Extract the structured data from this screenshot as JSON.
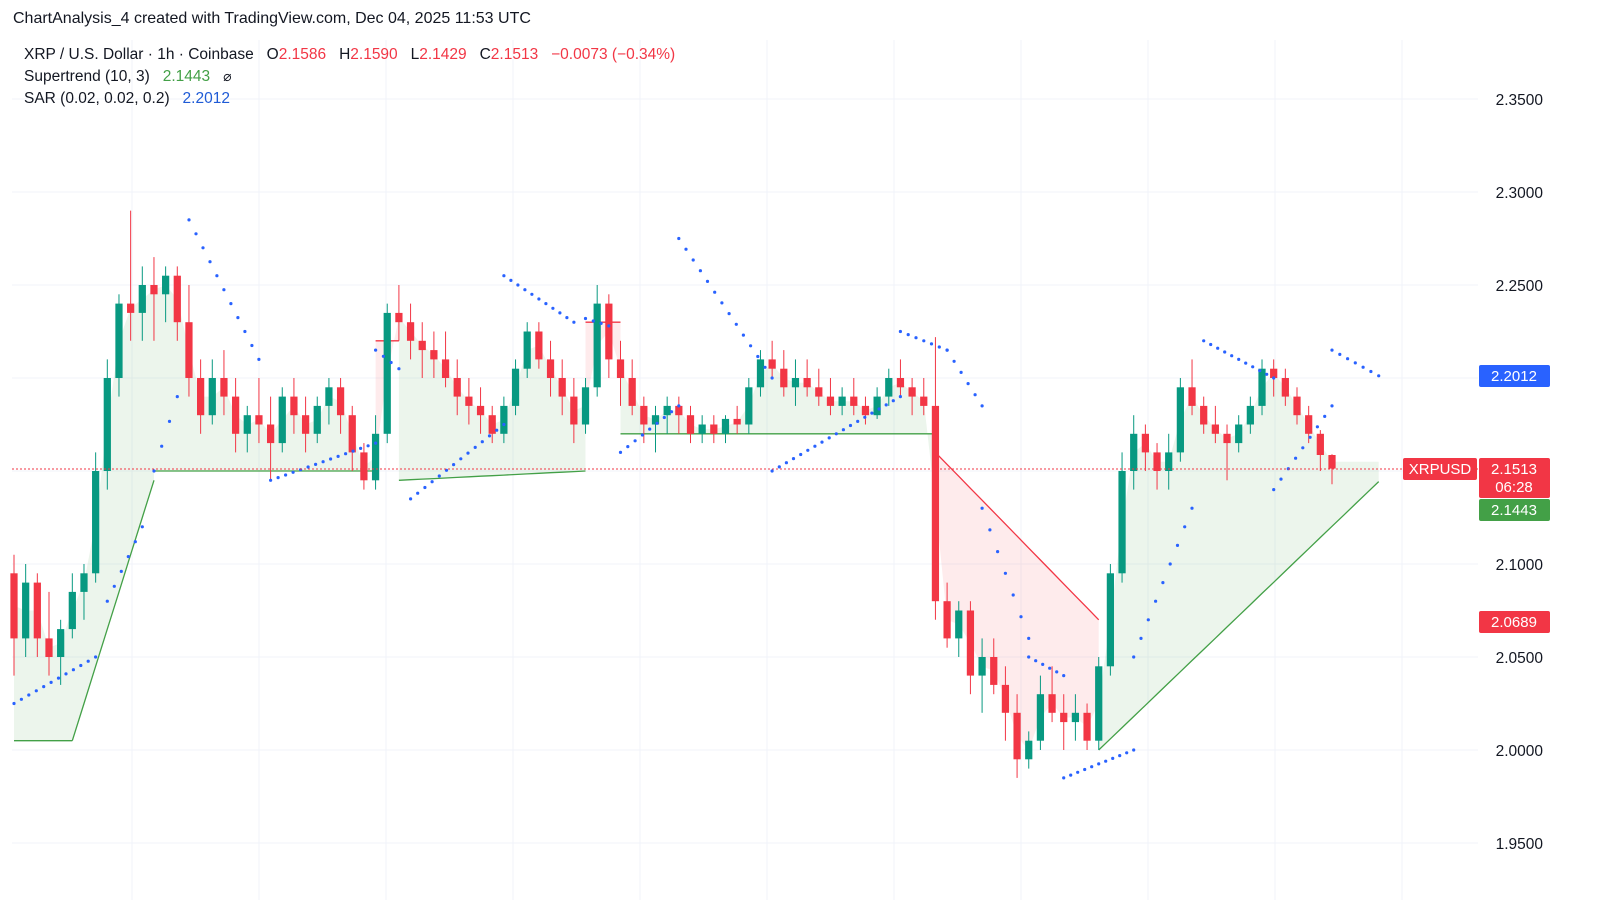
{
  "header": {
    "title": "ChartAnalysis_4 created with TradingView.com, Dec 04, 2025 11:53 UTC"
  },
  "legend": {
    "symbol": "XRP / U.S. Dollar · 1h · Coinbase",
    "o_label": "O",
    "o_value": "2.1586",
    "h_label": "H",
    "h_value": "2.1590",
    "l_label": "L",
    "l_value": "2.1429",
    "c_label": "C",
    "c_value": "2.1513",
    "change": "−0.0073 (−0.34%)",
    "supertrend_label": "Supertrend (10, 3)",
    "supertrend_value": "2.1443",
    "supertrend_icon": "eye-off-icon",
    "sar_label": "SAR (0.02, 0.02, 0.2)",
    "sar_value": "2.2012"
  },
  "tags": {
    "symbol": "XRPUSD",
    "price": "2.1513",
    "countdown": "06:28",
    "supertrend": "2.1443",
    "sar": "2.2012",
    "low_marker": "2.0689"
  },
  "colors": {
    "up": "#089981",
    "down": "#f23645",
    "sar": "#2962ff",
    "st_up": "#43a047",
    "st_down": "#f23645"
  },
  "chart_data": {
    "type": "candlestick",
    "title": "XRP / U.S. Dollar · 1h · Coinbase",
    "ylim": [
      1.925,
      2.375
    ],
    "yticks": [
      "2.3500",
      "2.3000",
      "2.2500",
      "2.2000",
      "2.1500",
      "2.1000",
      "2.0500",
      "2.0000",
      "1.9500"
    ],
    "grid": true,
    "last_price": 2.1513,
    "candles": [
      [
        2.095,
        2.105,
        2.04,
        2.06
      ],
      [
        2.06,
        2.1,
        2.05,
        2.09
      ],
      [
        2.09,
        2.095,
        2.05,
        2.06
      ],
      [
        2.06,
        2.085,
        2.04,
        2.05
      ],
      [
        2.05,
        2.07,
        2.035,
        2.065
      ],
      [
        2.065,
        2.095,
        2.06,
        2.085
      ],
      [
        2.085,
        2.1,
        2.07,
        2.095
      ],
      [
        2.095,
        2.16,
        2.09,
        2.15
      ],
      [
        2.15,
        2.21,
        2.14,
        2.2
      ],
      [
        2.2,
        2.245,
        2.19,
        2.24
      ],
      [
        2.24,
        2.29,
        2.22,
        2.235
      ],
      [
        2.235,
        2.26,
        2.22,
        2.25
      ],
      [
        2.25,
        2.265,
        2.22,
        2.245
      ],
      [
        2.245,
        2.26,
        2.23,
        2.255
      ],
      [
        2.255,
        2.26,
        2.22,
        2.23
      ],
      [
        2.23,
        2.25,
        2.19,
        2.2
      ],
      [
        2.2,
        2.21,
        2.17,
        2.18
      ],
      [
        2.18,
        2.21,
        2.175,
        2.2
      ],
      [
        2.2,
        2.215,
        2.18,
        2.19
      ],
      [
        2.19,
        2.2,
        2.16,
        2.17
      ],
      [
        2.17,
        2.185,
        2.16,
        2.18
      ],
      [
        2.18,
        2.2,
        2.165,
        2.175
      ],
      [
        2.175,
        2.19,
        2.145,
        2.165
      ],
      [
        2.165,
        2.195,
        2.16,
        2.19
      ],
      [
        2.19,
        2.2,
        2.17,
        2.18
      ],
      [
        2.18,
        2.19,
        2.16,
        2.17
      ],
      [
        2.17,
        2.19,
        2.165,
        2.185
      ],
      [
        2.185,
        2.2,
        2.175,
        2.195
      ],
      [
        2.195,
        2.2,
        2.17,
        2.18
      ],
      [
        2.18,
        2.185,
        2.15,
        2.16
      ],
      [
        2.16,
        2.165,
        2.14,
        2.145
      ],
      [
        2.145,
        2.18,
        2.14,
        2.17
      ],
      [
        2.17,
        2.24,
        2.165,
        2.235
      ],
      [
        2.235,
        2.25,
        2.22,
        2.23
      ],
      [
        2.23,
        2.24,
        2.21,
        2.22
      ],
      [
        2.22,
        2.23,
        2.2,
        2.215
      ],
      [
        2.215,
        2.225,
        2.2,
        2.21
      ],
      [
        2.21,
        2.225,
        2.195,
        2.2
      ],
      [
        2.2,
        2.21,
        2.18,
        2.19
      ],
      [
        2.19,
        2.2,
        2.175,
        2.185
      ],
      [
        2.185,
        2.195,
        2.17,
        2.18
      ],
      [
        2.18,
        2.185,
        2.165,
        2.17
      ],
      [
        2.17,
        2.19,
        2.165,
        2.185
      ],
      [
        2.185,
        2.21,
        2.18,
        2.205
      ],
      [
        2.205,
        2.23,
        2.2,
        2.225
      ],
      [
        2.225,
        2.23,
        2.205,
        2.21
      ],
      [
        2.21,
        2.22,
        2.19,
        2.2
      ],
      [
        2.2,
        2.21,
        2.18,
        2.19
      ],
      [
        2.19,
        2.2,
        2.165,
        2.175
      ],
      [
        2.175,
        2.2,
        2.17,
        2.195
      ],
      [
        2.195,
        2.25,
        2.19,
        2.24
      ],
      [
        2.24,
        2.245,
        2.2,
        2.21
      ],
      [
        2.21,
        2.22,
        2.185,
        2.2
      ],
      [
        2.2,
        2.21,
        2.18,
        2.185
      ],
      [
        2.185,
        2.19,
        2.165,
        2.175
      ],
      [
        2.175,
        2.185,
        2.16,
        2.18
      ],
      [
        2.18,
        2.19,
        2.17,
        2.185
      ],
      [
        2.185,
        2.19,
        2.17,
        2.18
      ],
      [
        2.18,
        2.185,
        2.165,
        2.17
      ],
      [
        2.17,
        2.18,
        2.165,
        2.175
      ],
      [
        2.175,
        2.18,
        2.165,
        2.17
      ],
      [
        2.17,
        2.18,
        2.165,
        2.178
      ],
      [
        2.178,
        2.185,
        2.17,
        2.175
      ],
      [
        2.175,
        2.2,
        2.17,
        2.195
      ],
      [
        2.195,
        2.215,
        2.19,
        2.21
      ],
      [
        2.21,
        2.22,
        2.2,
        2.205
      ],
      [
        2.205,
        2.215,
        2.19,
        2.195
      ],
      [
        2.195,
        2.21,
        2.185,
        2.2
      ],
      [
        2.2,
        2.21,
        2.19,
        2.195
      ],
      [
        2.195,
        2.205,
        2.185,
        2.19
      ],
      [
        2.19,
        2.2,
        2.18,
        2.185
      ],
      [
        2.185,
        2.195,
        2.18,
        2.19
      ],
      [
        2.19,
        2.2,
        2.18,
        2.185
      ],
      [
        2.185,
        2.19,
        2.175,
        2.18
      ],
      [
        2.18,
        2.195,
        2.178,
        2.19
      ],
      [
        2.19,
        2.205,
        2.185,
        2.2
      ],
      [
        2.2,
        2.21,
        2.19,
        2.195
      ],
      [
        2.195,
        2.2,
        2.18,
        2.19
      ],
      [
        2.19,
        2.2,
        2.18,
        2.185
      ],
      [
        2.185,
        2.222,
        2.07,
        2.08
      ],
      [
        2.08,
        2.09,
        2.055,
        2.06
      ],
      [
        2.06,
        2.08,
        2.05,
        2.075
      ],
      [
        2.075,
        2.08,
        2.03,
        2.04
      ],
      [
        2.04,
        2.06,
        2.02,
        2.05
      ],
      [
        2.05,
        2.06,
        2.03,
        2.035
      ],
      [
        2.035,
        2.045,
        2.005,
        2.02
      ],
      [
        2.02,
        2.03,
        1.985,
        1.995
      ],
      [
        1.995,
        2.01,
        1.99,
        2.005
      ],
      [
        2.005,
        2.04,
        2.0,
        2.03
      ],
      [
        2.03,
        2.045,
        2.015,
        2.02
      ],
      [
        2.02,
        2.03,
        2.0,
        2.015
      ],
      [
        2.015,
        2.03,
        2.005,
        2.02
      ],
      [
        2.02,
        2.025,
        2.0,
        2.005
      ],
      [
        2.005,
        2.05,
        2.0,
        2.045
      ],
      [
        2.045,
        2.1,
        2.04,
        2.095
      ],
      [
        2.095,
        2.16,
        2.09,
        2.15
      ],
      [
        2.15,
        2.18,
        2.14,
        2.17
      ],
      [
        2.17,
        2.175,
        2.15,
        2.16
      ],
      [
        2.16,
        2.165,
        2.14,
        2.15
      ],
      [
        2.15,
        2.17,
        2.14,
        2.16
      ],
      [
        2.16,
        2.2,
        2.155,
        2.195
      ],
      [
        2.195,
        2.21,
        2.18,
        2.185
      ],
      [
        2.185,
        2.19,
        2.17,
        2.175
      ],
      [
        2.175,
        2.185,
        2.165,
        2.17
      ],
      [
        2.17,
        2.175,
        2.145,
        2.165
      ],
      [
        2.165,
        2.18,
        2.16,
        2.175
      ],
      [
        2.175,
        2.19,
        2.17,
        2.185
      ],
      [
        2.185,
        2.21,
        2.18,
        2.205
      ],
      [
        2.205,
        2.21,
        2.19,
        2.2
      ],
      [
        2.2,
        2.205,
        2.185,
        2.19
      ],
      [
        2.19,
        2.195,
        2.175,
        2.18
      ],
      [
        2.18,
        2.185,
        2.165,
        2.17
      ],
      [
        2.17,
        2.172,
        2.15,
        2.1586
      ],
      [
        2.1586,
        2.159,
        2.1429,
        2.1513
      ]
    ],
    "supertrend": [
      {
        "dir": "up",
        "from": 0,
        "to": 5,
        "v0": 2.005,
        "v1": 2.005
      },
      {
        "dir": "up",
        "from": 5,
        "to": 12,
        "v0": 2.005,
        "v1": 2.145
      },
      {
        "dir": "up",
        "from": 12,
        "to": 31,
        "v0": 2.15,
        "v1": 2.15
      },
      {
        "dir": "down",
        "from": 31,
        "to": 33,
        "v0": 2.22,
        "v1": 2.22
      },
      {
        "dir": "up",
        "from": 33,
        "to": 49,
        "v0": 2.145,
        "v1": 2.15
      },
      {
        "dir": "down",
        "from": 49,
        "to": 52,
        "v0": 2.23,
        "v1": 2.23
      },
      {
        "dir": "up",
        "from": 52,
        "to": 79,
        "v0": 2.17,
        "v1": 2.17
      },
      {
        "dir": "down",
        "from": 79,
        "to": 93,
        "v0": 2.16,
        "v1": 2.07
      },
      {
        "dir": "up",
        "from": 93,
        "to": 117,
        "v0": 2.0,
        "v1": 2.1443
      }
    ],
    "sar": [
      {
        "from": 0,
        "to": 7,
        "v0": 2.025,
        "v1": 2.05
      },
      {
        "from": 8,
        "to": 11,
        "v0": 2.08,
        "v1": 2.12
      },
      {
        "from": 12,
        "to": 14,
        "v0": 2.15,
        "v1": 2.19
      },
      {
        "from": 15,
        "to": 21,
        "v0": 2.285,
        "v1": 2.21
      },
      {
        "from": 22,
        "to": 31,
        "v0": 2.145,
        "v1": 2.165
      },
      {
        "from": 31,
        "to": 33,
        "v0": 2.215,
        "v1": 2.205
      },
      {
        "from": 34,
        "to": 42,
        "v0": 2.135,
        "v1": 2.175
      },
      {
        "from": 42,
        "to": 48,
        "v0": 2.255,
        "v1": 2.23
      },
      {
        "from": 49,
        "to": 51,
        "v0": 2.232,
        "v1": 2.228
      },
      {
        "from": 52,
        "to": 57,
        "v0": 2.16,
        "v1": 2.185
      },
      {
        "from": 57,
        "to": 65,
        "v0": 2.275,
        "v1": 2.2
      },
      {
        "from": 65,
        "to": 76,
        "v0": 2.15,
        "v1": 2.19
      },
      {
        "from": 76,
        "to": 80,
        "v0": 2.225,
        "v1": 2.215
      },
      {
        "from": 80,
        "to": 83,
        "v0": 2.215,
        "v1": 2.185
      },
      {
        "from": 83,
        "to": 87,
        "v0": 2.13,
        "v1": 2.06
      },
      {
        "from": 87,
        "to": 90,
        "v0": 2.05,
        "v1": 2.04
      },
      {
        "from": 90,
        "to": 96,
        "v0": 1.985,
        "v1": 2.0
      },
      {
        "from": 96,
        "to": 101,
        "v0": 2.05,
        "v1": 2.13
      },
      {
        "from": 102,
        "to": 108,
        "v0": 2.22,
        "v1": 2.2
      },
      {
        "from": 108,
        "to": 113,
        "v0": 2.14,
        "v1": 2.185
      },
      {
        "from": 113,
        "to": 117,
        "v0": 2.215,
        "v1": 2.2012
      }
    ]
  }
}
